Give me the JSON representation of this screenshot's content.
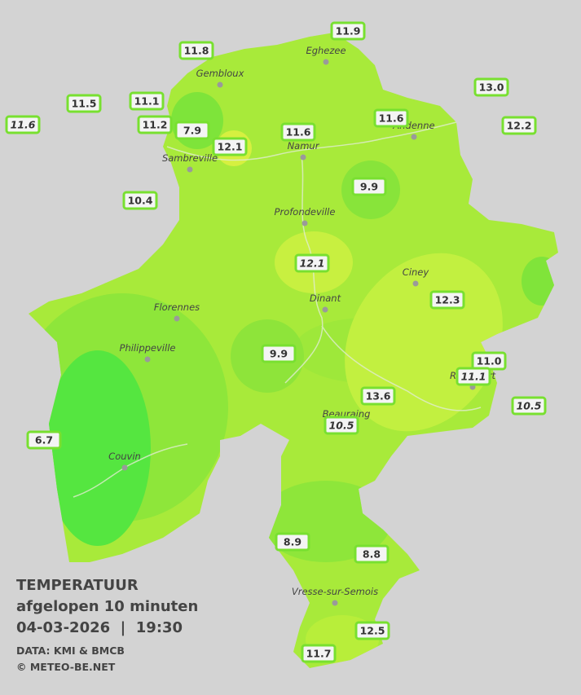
{
  "header": {
    "title": "TEMPERATUUR",
    "subtitle": "afgelopen 10 minuten",
    "datetime": "04-03-2026  |  19:30",
    "source": "DATA: KMI & BMCB",
    "credit": "© METEO-BE.NET"
  },
  "towns": [
    "Eghezee",
    "Gembloux",
    "Andenne",
    "Namur",
    "Sambreville",
    "Profondeville",
    "Ciney",
    "Dinant",
    "Florennes",
    "Philippeville",
    "Rochefort",
    "Beauraing",
    "Couvin",
    "Vresse-sur-Semois"
  ],
  "stations": [
    "11.9",
    "11.8",
    "13.0",
    "11.5",
    "11.1",
    "11.6",
    "11.2",
    "7.9",
    "11.6",
    "12.2",
    "11.6",
    "12.1",
    "9.9",
    "10.4",
    "12.1",
    "12.3",
    "9.9",
    "11.0",
    "11.1",
    "13.6",
    "10.5",
    "10.5",
    "6.7",
    "8.9",
    "8.8",
    "12.5",
    "11.7"
  ]
}
